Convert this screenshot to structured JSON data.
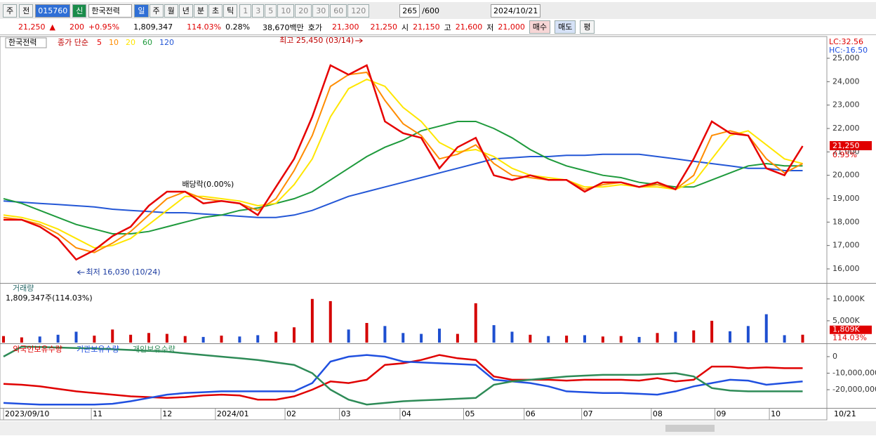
{
  "toolbar": {
    "period": "주",
    "prev": "전",
    "code": "015760",
    "new_tag": "신",
    "name": "한국전력",
    "intervals": [
      "일",
      "주",
      "월",
      "년",
      "분",
      "초",
      "틱"
    ],
    "counts": [
      "1",
      "3",
      "5",
      "10",
      "20",
      "30",
      "60",
      "120"
    ],
    "bars": "265",
    "max": "/600",
    "date": "2024/10/21"
  },
  "quote": {
    "price": "21,250",
    "arrow": "▲",
    "change": "200",
    "change_pct": "+0.95%",
    "volume": "1,809,347",
    "volume_ratio": "114.03%",
    "turnover": "0.28%",
    "amount": "38,670백만",
    "bid_ask_label": "호가",
    "ask": "21,300",
    "bid": "21,250",
    "open_label": "시",
    "open": "21,150",
    "high_label": "고",
    "high": "21,600",
    "low_label": "저",
    "low": "21,000",
    "buy": "매수",
    "sell": "매도",
    "avg": "평"
  },
  "chart_data": [
    {
      "type": "line",
      "title": "한국전력",
      "legend_title": "종가 단순",
      "lc": "LC:32.56",
      "hc": "HC:-16.50",
      "last_label": "21,250",
      "last_pct": "0.95%",
      "end_label": "10/21",
      "x": [
        0,
        6,
        12,
        18,
        24,
        30,
        36,
        42,
        48,
        54,
        60,
        66,
        72,
        78,
        84,
        90,
        96,
        102,
        108,
        114,
        120,
        126,
        132,
        138,
        144,
        150,
        156,
        162,
        168,
        174,
        180,
        186,
        192,
        198,
        204,
        210,
        216,
        222,
        228,
        234,
        240,
        246,
        252,
        258,
        264
      ],
      "series": [
        {
          "name": "5",
          "color": "#e60000",
          "values": [
            18100,
            18100,
            17800,
            17300,
            16400,
            16800,
            17400,
            17800,
            18700,
            19300,
            19300,
            18800,
            18900,
            18800,
            18300,
            19500,
            20700,
            22500,
            24700,
            24300,
            24700,
            22300,
            21800,
            21600,
            20300,
            21200,
            21600,
            20000,
            19800,
            20000,
            19800,
            19800,
            19300,
            19700,
            19700,
            19500,
            19700,
            19400,
            20700,
            22300,
            21800,
            21700,
            20300,
            20000,
            21250
          ]
        },
        {
          "name": "10",
          "color": "#ff8c00",
          "values": [
            18200,
            18100,
            17900,
            17500,
            16900,
            16700,
            17100,
            17600,
            18300,
            19000,
            19300,
            19000,
            18900,
            18800,
            18500,
            19000,
            20200,
            21700,
            23800,
            24300,
            24400,
            23200,
            22200,
            21700,
            20700,
            20900,
            21300,
            20500,
            20000,
            19900,
            19800,
            19800,
            19400,
            19600,
            19700,
            19500,
            19600,
            19400,
            20000,
            21700,
            21900,
            21700,
            20700,
            20100,
            20500
          ]
        },
        {
          "name": "20",
          "color": "#ffe600",
          "values": [
            18300,
            18200,
            18000,
            17700,
            17300,
            16900,
            17000,
            17300,
            17900,
            18500,
            19100,
            19100,
            19000,
            18900,
            18700,
            18800,
            19600,
            20700,
            22500,
            23700,
            24100,
            23800,
            22900,
            22300,
            21400,
            21000,
            21100,
            20800,
            20300,
            20000,
            19900,
            19800,
            19500,
            19500,
            19600,
            19500,
            19500,
            19400,
            19700,
            20700,
            21700,
            21900,
            21300,
            20700,
            20500
          ]
        },
        {
          "name": "60",
          "color": "#1e9a3c",
          "values": [
            19000,
            18800,
            18500,
            18200,
            17900,
            17700,
            17500,
            17500,
            17600,
            17800,
            18000,
            18200,
            18300,
            18500,
            18600,
            18800,
            19000,
            19300,
            19800,
            20300,
            20800,
            21200,
            21500,
            21900,
            22100,
            22300,
            22300,
            22000,
            21600,
            21100,
            20700,
            20400,
            20200,
            20000,
            19900,
            19700,
            19600,
            19500,
            19500,
            19800,
            20100,
            20400,
            20500,
            20400,
            20400
          ]
        },
        {
          "name": "120",
          "color": "#2457d6",
          "values": [
            18900,
            18850,
            18800,
            18750,
            18700,
            18650,
            18550,
            18500,
            18450,
            18400,
            18400,
            18350,
            18300,
            18250,
            18200,
            18200,
            18300,
            18500,
            18800,
            19100,
            19300,
            19500,
            19700,
            19900,
            20100,
            20300,
            20500,
            20700,
            20750,
            20800,
            20800,
            20850,
            20850,
            20900,
            20900,
            20900,
            20800,
            20700,
            20600,
            20500,
            20400,
            20300,
            20300,
            20200,
            20200
          ]
        }
      ],
      "xlim": [
        0,
        272
      ],
      "ylim": [
        15400,
        25930
      ],
      "yticks": [
        {
          "value": 16000,
          "label": "16,000"
        },
        {
          "value": 17000,
          "label": "17,000"
        },
        {
          "value": 18000,
          "label": "18,000"
        },
        {
          "value": 19000,
          "label": "19,000"
        },
        {
          "value": 20000,
          "label": "20,000"
        },
        {
          "value": 21000,
          "label": "21,000"
        },
        {
          "value": 22000,
          "label": "22,000"
        },
        {
          "value": 23000,
          "label": "23,000"
        },
        {
          "value": 24000,
          "label": "24,000"
        },
        {
          "value": 25000,
          "label": "25,000"
        }
      ],
      "xticks": [
        {
          "value": 0,
          "label": "2023/09/10"
        },
        {
          "value": 29,
          "label": "11"
        },
        {
          "value": 52,
          "label": "12"
        },
        {
          "value": 70,
          "label": "2024/01"
        },
        {
          "value": 93,
          "label": "02"
        },
        {
          "value": 111,
          "label": "03"
        },
        {
          "value": 131,
          "label": "04"
        },
        {
          "value": 152,
          "label": "05"
        },
        {
          "value": 172,
          "label": "06"
        },
        {
          "value": 191,
          "label": "07"
        },
        {
          "value": 214,
          "label": "08"
        },
        {
          "value": 235,
          "label": "09"
        },
        {
          "value": 253,
          "label": "10"
        }
      ],
      "annotations": [
        {
          "text": "최고 25,450 (03/14)",
          "x": 119,
          "y": 25450
        },
        {
          "text": "최저 16,030 (10/24)",
          "x": 24,
          "y": 16030
        },
        {
          "text": "배당락(0.00%)",
          "x": 59
        }
      ]
    },
    {
      "type": "bar",
      "title": "거래량",
      "subtitle": "1,809,347주(114.03%)",
      "last_label": "1,809K",
      "last_pct": "114.03%",
      "values": [
        1500,
        1200,
        1400,
        1800,
        2500,
        1600,
        3000,
        1800,
        2200,
        2000,
        1500,
        1300,
        1600,
        1400,
        1700,
        2500,
        3500,
        10000,
        9500,
        3000,
        4500,
        3800,
        2200,
        2000,
        3200,
        2000,
        9000,
        4000,
        2500,
        1800,
        1500,
        1600,
        1700,
        1400,
        1500,
        1300,
        2200,
        2500,
        2800,
        5000,
        2600,
        3800,
        6500,
        1700,
        1809
      ],
      "ylim": [
        0,
        13500
      ],
      "yticks": [
        {
          "value": 5000,
          "label": "5,000K"
        },
        {
          "value": 10000,
          "label": "10,000K"
        }
      ]
    },
    {
      "type": "line",
      "series": [
        {
          "name": "외국인보유수량",
          "color": "#e00000",
          "values": [
            -16500000,
            -17000000,
            -18000000,
            -19500000,
            -21000000,
            -22000000,
            -23000000,
            -24000000,
            -24500000,
            -25000000,
            -24500000,
            -23500000,
            -23000000,
            -23500000,
            -26000000,
            -26000000,
            -24000000,
            -20000000,
            -15000000,
            -16000000,
            -14000000,
            -5000000,
            -4000000,
            -2000000,
            1000000,
            -1000000,
            -2000000,
            -12000000,
            -14000000,
            -14000000,
            -14000000,
            -14500000,
            -14000000,
            -14000000,
            -14000000,
            -14500000,
            -13000000,
            -15000000,
            -14000000,
            -6000000,
            -6000000,
            -7000000,
            -6500000,
            -7000000,
            -7000000
          ]
        },
        {
          "name": "기관보유수량",
          "color": "#2050e0",
          "values": [
            -28000000,
            -28500000,
            -29000000,
            -29000000,
            -29000000,
            -29000000,
            -28500000,
            -27000000,
            -25000000,
            -23000000,
            -22000000,
            -21500000,
            -21000000,
            -21000000,
            -21000000,
            -21000000,
            -21000000,
            -16000000,
            -3000000,
            0,
            1000000,
            0,
            -3000000,
            -3500000,
            -4000000,
            -4500000,
            -5000000,
            -14000000,
            -15000000,
            -16000000,
            -18000000,
            -21000000,
            -21500000,
            -22000000,
            -22000000,
            -22500000,
            -23000000,
            -21000000,
            -18000000,
            -16000000,
            -14000000,
            -14500000,
            -17000000,
            -16000000,
            -15000000
          ]
        },
        {
          "name": "개인보유수량",
          "color": "#2e8b57",
          "values": [
            6000,
            6000000,
            5800000,
            5500000,
            5200000,
            5000000,
            4500000,
            4000000,
            3500000,
            3000000,
            2000000,
            1000000,
            0,
            -1000000,
            -2000000,
            -3500000,
            -5000000,
            -10000000,
            -20000000,
            -26000000,
            -29000000,
            -28000000,
            -27000000,
            -26500000,
            -26000000,
            -25500000,
            -25000000,
            -17000000,
            -15000000,
            -14000000,
            -13000000,
            -12000000,
            -11500000,
            -11000000,
            -11000000,
            -11000000,
            -10500000,
            -10000000,
            -12000000,
            -19000000,
            -20500000,
            -21000000,
            -21000000,
            -21000000,
            -21000000
          ]
        }
      ],
      "ylim": [
        -30600000,
        7200000
      ],
      "yticks": [
        {
          "value": 0,
          "label": "0"
        },
        {
          "value": -10000000,
          "label": "-10,000,000"
        },
        {
          "value": -20000000,
          "label": "-20,000,000"
        }
      ]
    }
  ]
}
